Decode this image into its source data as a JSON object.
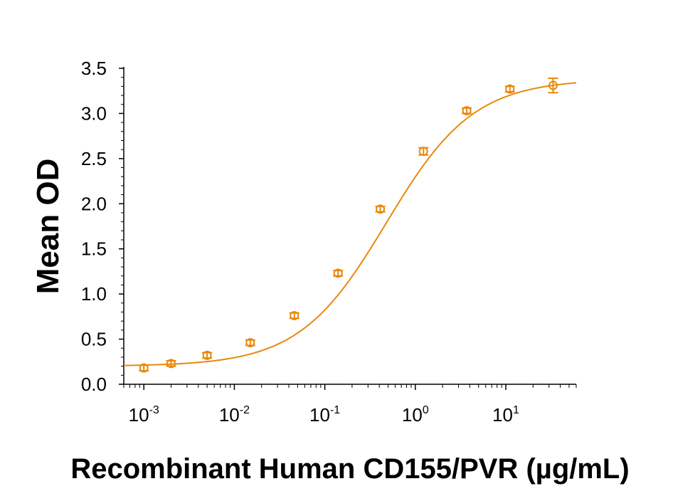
{
  "chart_data": {
    "type": "scatter",
    "title": "",
    "xlabel": "Recombinant Human CD155/PVR (µg/mL)",
    "ylabel": "Mean OD",
    "x_scale": "log",
    "xlim": [
      0.0006,
      60
    ],
    "ylim": [
      0,
      3.5
    ],
    "x_ticks": [
      {
        "value": 0.001,
        "base": "10",
        "exp": "-3"
      },
      {
        "value": 0.01,
        "base": "10",
        "exp": "-2"
      },
      {
        "value": 0.1,
        "base": "10",
        "exp": "-1"
      },
      {
        "value": 1,
        "base": "10",
        "exp": "0"
      },
      {
        "value": 10,
        "base": "10",
        "exp": "1"
      }
    ],
    "y_ticks": [
      "0.0",
      "0.5",
      "1.0",
      "1.5",
      "2.0",
      "2.5",
      "3.0",
      "3.5"
    ],
    "grid": false,
    "legend": "none",
    "color": "#E8890C",
    "series": [
      {
        "x": [
          0.001,
          0.002,
          0.005,
          0.015,
          0.046,
          0.14,
          0.41,
          1.23,
          3.7,
          11.1,
          33.3
        ],
        "y": [
          0.18,
          0.23,
          0.32,
          0.46,
          0.76,
          1.23,
          1.94,
          2.58,
          3.03,
          3.27,
          3.31
        ],
        "error": [
          0.03,
          0.03,
          0.03,
          0.03,
          0.03,
          0.03,
          0.03,
          0.04,
          0.03,
          0.03,
          0.08
        ]
      }
    ],
    "fit": {
      "type": "4PL",
      "bottom": 0.2,
      "top": 3.38,
      "ec50": 0.48,
      "hill": 0.9
    }
  }
}
